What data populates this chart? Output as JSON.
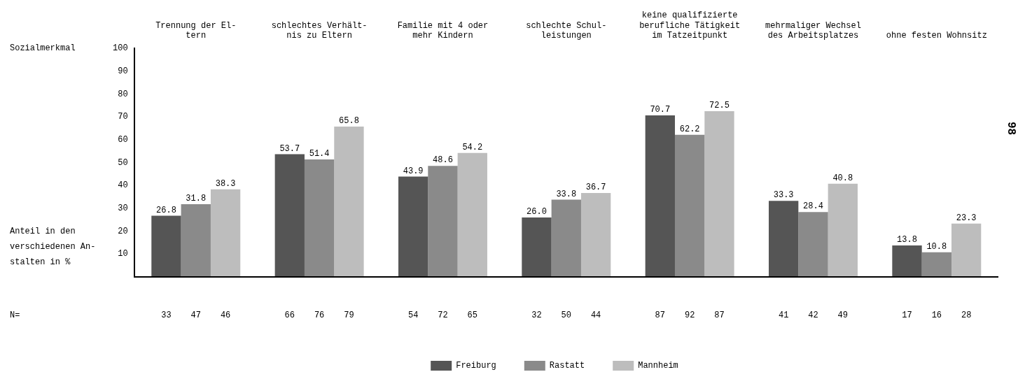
{
  "chart_data": {
    "type": "bar",
    "xlabel": "Sozialmerkmal",
    "ylabel": "Anteil in den\nverschiedenen An-\nstalten in %",
    "categories": [
      "Trennung der El-\ntern",
      "schlechtes Verhält-\nnis zu Eltern",
      "Familie mit 4 oder\nmehr Kindern",
      "schlechte Schul-\nleistungen",
      "keine qualifizierte\nberufliche Tätigkeit\nim Tatzeitpunkt",
      "mehrmaliger Wechsel\ndes Arbeitsplatzes",
      "ohne festen Wohnsitz"
    ],
    "series": [
      {
        "name": "Freiburg",
        "color": "#555555",
        "values": [
          26.8,
          53.7,
          43.9,
          26.0,
          70.7,
          33.3,
          13.8
        ],
        "value_labels": [
          "26.8",
          "53.7",
          "43.9",
          "26.0",
          "70.7",
          "33.3",
          "13.8"
        ]
      },
      {
        "name": "Rastatt",
        "color": "#8a8a8a",
        "values": [
          31.8,
          51.4,
          48.6,
          33.8,
          62.2,
          28.4,
          10.8
        ],
        "value_labels": [
          "31.8",
          "51.4",
          "48.6",
          "33.8",
          "62.2",
          "28.4",
          "10.8"
        ]
      },
      {
        "name": "Mannheim",
        "color": "#bdbdbd",
        "values": [
          38.3,
          65.8,
          54.2,
          36.7,
          72.5,
          40.8,
          23.3
        ],
        "value_labels": [
          "38.3",
          "65.8",
          "54.2",
          "36.7",
          "72.5",
          "40.8",
          "23.3"
        ]
      }
    ],
    "ylim": [
      0,
      100
    ],
    "yticks": [
      10,
      20,
      30,
      40,
      50,
      60,
      70,
      80,
      90,
      100
    ],
    "grid": false,
    "legend": "bottom",
    "annotations": [
      "98",
      "N=",
      "33",
      "47",
      "46",
      "66",
      "76",
      "79",
      "54",
      "72",
      "65",
      "32",
      "50",
      "44",
      "87",
      "92",
      "87",
      "41",
      "42",
      "49",
      "17",
      "16",
      "28"
    ]
  }
}
